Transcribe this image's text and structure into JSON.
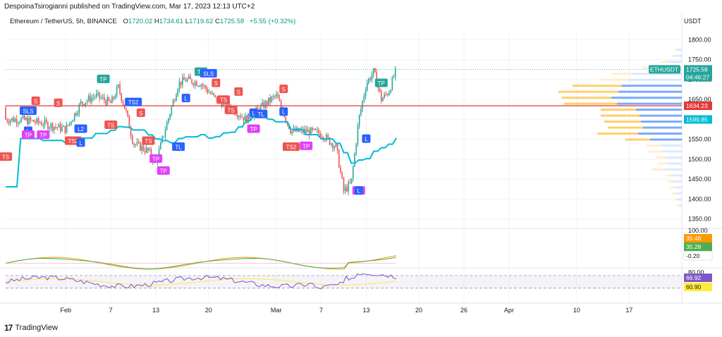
{
  "header": {
    "published": "DespoinaTsirogianni published on TradingView.com, Mar 17, 2023 12:13 UTC+2",
    "symbol": "Ethereum / TetherUS, 5h, BINANCE",
    "o_label": "O",
    "o": "1720.02",
    "h_label": "H",
    "h": "1734.61",
    "l_label": "L",
    "l": "1719.62",
    "c_label": "C",
    "c": "1725.58",
    "change": "+5.55 (+0.32%)",
    "currency": "USDT"
  },
  "footer": {
    "brand": "TradingView",
    "logo": "tradingview-logo"
  },
  "colors": {
    "up": "#26a69a",
    "down": "#ef5350",
    "ma": "#00bcd4",
    "hline": "#e53935",
    "grid": "#f0f3fa",
    "text": "#131722",
    "vp_up": "#4c8dff",
    "vp_down": "#ffc74d"
  },
  "chart_data": [
    {
      "type": "candlestick",
      "title": "Ethereum / TetherUS, 5h, BINANCE",
      "ylim": [
        1330,
        1820
      ],
      "y_ticks": [
        1800,
        1750,
        1700,
        1650,
        1600,
        1550,
        1500,
        1450,
        1400,
        1350
      ],
      "x_tick_labels": [
        "Feb",
        "7",
        "13",
        "20",
        "Mar",
        "7",
        "13",
        "20",
        "26",
        "Apr",
        "10",
        "17"
      ],
      "ohlc_trend": [
        {
          "date": "Jan 26",
          "close": 1600
        },
        {
          "date": "Jan 29",
          "close": 1590
        },
        {
          "date": "Feb 1",
          "close": 1575
        },
        {
          "date": "Feb 3",
          "close": 1640
        },
        {
          "date": "Feb 5",
          "close": 1660
        },
        {
          "date": "Feb 7",
          "close": 1640
        },
        {
          "date": "Feb 8",
          "close": 1680
        },
        {
          "date": "Feb 9",
          "close": 1620
        },
        {
          "date": "Feb 10",
          "close": 1540
        },
        {
          "date": "Feb 12",
          "close": 1520
        },
        {
          "date": "Feb 13",
          "close": 1490
        },
        {
          "date": "Feb 14",
          "close": 1560
        },
        {
          "date": "Feb 16",
          "close": 1690
        },
        {
          "date": "Feb 17",
          "close": 1700
        },
        {
          "date": "Feb 19",
          "close": 1690
        },
        {
          "date": "Feb 21",
          "close": 1650
        },
        {
          "date": "Feb 23",
          "close": 1630
        },
        {
          "date": "Feb 25",
          "close": 1600
        },
        {
          "date": "Feb 27",
          "close": 1630
        },
        {
          "date": "Mar 1",
          "close": 1660
        },
        {
          "date": "Mar 3",
          "close": 1570
        },
        {
          "date": "Mar 5",
          "close": 1570
        },
        {
          "date": "Mar 7",
          "close": 1565
        },
        {
          "date": "Mar 9",
          "close": 1530
        },
        {
          "date": "Mar 10",
          "close": 1420
        },
        {
          "date": "Mar 11",
          "close": 1440
        },
        {
          "date": "Mar 12",
          "close": 1600
        },
        {
          "date": "Mar 13",
          "close": 1690
        },
        {
          "date": "Mar 14",
          "close": 1720
        },
        {
          "date": "Mar 15",
          "close": 1650
        },
        {
          "date": "Mar 16",
          "close": 1670
        },
        {
          "date": "Mar 17",
          "close": 1725.58
        }
      ],
      "ma_series": {
        "start": 1475,
        "end": 1595
      },
      "horizontal_line": 1634.23,
      "price_labels": [
        {
          "text": "ETHUSDT",
          "value": 1725.58,
          "side": "left",
          "color": "#26a69a"
        },
        {
          "text": "1725.58",
          "value": 1725.58,
          "color": "#26a69a"
        },
        {
          "text": "04:46:27",
          "value": 1725.58,
          "offset": 1,
          "color": "#26a69a"
        },
        {
          "text": "1634.23",
          "value": 1634.23,
          "color": "#e53935"
        },
        {
          "text": "1599.85",
          "value": 1599.85,
          "color": "#00bcd4"
        }
      ],
      "signals": [
        {
          "label": "TP",
          "date": "Feb 6",
          "price": 1700,
          "color": "#26a69a"
        },
        {
          "label": "SLS",
          "date": "Jan 27",
          "price": 1620,
          "color": "#2962ff"
        },
        {
          "label": "S",
          "date": "Jan 28",
          "price": 1645,
          "color": "#ef5350"
        },
        {
          "label": "S",
          "date": "Jan 31",
          "price": 1640,
          "color": "#ef5350"
        },
        {
          "label": "TS",
          "date": "Jan 24",
          "price": 1505,
          "color": "#ef5350"
        },
        {
          "label": "L",
          "date": "Jan 27",
          "price": 1570,
          "color": "#2962ff"
        },
        {
          "label": "TP",
          "date": "Jan 27",
          "price": 1560,
          "color": "#e040fb"
        },
        {
          "label": "TP",
          "date": "Jan 29",
          "price": 1560,
          "color": "#e040fb"
        },
        {
          "label": "TS2",
          "date": "Feb 2",
          "price": 1545,
          "color": "#ef5350"
        },
        {
          "label": "L",
          "date": "Feb 3",
          "price": 1540,
          "color": "#2962ff"
        },
        {
          "label": "L2",
          "date": "Feb 3",
          "price": 1575,
          "color": "#2962ff"
        },
        {
          "label": "TS",
          "date": "Feb 7",
          "price": 1585,
          "color": "#ef5350"
        },
        {
          "label": "TS2",
          "date": "Feb 10",
          "price": 1642,
          "color": "#2962ff"
        },
        {
          "label": "S",
          "date": "Feb 11",
          "price": 1615,
          "color": "#ef5350"
        },
        {
          "label": "TS",
          "date": "Feb 12",
          "price": 1545,
          "color": "#ef5350"
        },
        {
          "label": "TP",
          "date": "Feb 13",
          "price": 1500,
          "color": "#e040fb"
        },
        {
          "label": "TP",
          "date": "Feb 14",
          "price": 1470,
          "color": "#e040fb"
        },
        {
          "label": "TL",
          "date": "Feb 16",
          "price": 1530,
          "color": "#2962ff"
        },
        {
          "label": "L",
          "date": "Feb 17",
          "price": 1652,
          "color": "#2962ff"
        },
        {
          "label": "TP",
          "date": "Feb 19",
          "price": 1718,
          "color": "#26a69a"
        },
        {
          "label": "SLS",
          "date": "Feb 20",
          "price": 1714,
          "color": "#2962ff"
        },
        {
          "label": "S",
          "date": "Feb 21",
          "price": 1690,
          "color": "#ef5350"
        },
        {
          "label": "TS",
          "date": "Feb 22",
          "price": 1648,
          "color": "#ef5350"
        },
        {
          "label": "TS",
          "date": "Feb 23",
          "price": 1622,
          "color": "#ef5350"
        },
        {
          "label": "S",
          "date": "Feb 24",
          "price": 1668,
          "color": "#ef5350"
        },
        {
          "label": "L",
          "date": "Feb 26",
          "price": 1615,
          "color": "#2962ff"
        },
        {
          "label": "TP",
          "date": "Feb 26",
          "price": 1575,
          "color": "#e040fb"
        },
        {
          "label": "TL",
          "date": "Feb 27",
          "price": 1612,
          "color": "#2962ff"
        },
        {
          "label": "S",
          "date": "Mar 2",
          "price": 1675,
          "color": "#ef5350"
        },
        {
          "label": "L",
          "date": "Mar 2",
          "price": 1618,
          "color": "#2962ff"
        },
        {
          "label": "TS2",
          "date": "Mar 3",
          "price": 1530,
          "color": "#ef5350"
        },
        {
          "label": "TP",
          "date": "Mar 5",
          "price": 1532,
          "color": "#e040fb"
        },
        {
          "label": "L",
          "date": "Mar 13",
          "price": 1550,
          "color": "#2962ff"
        },
        {
          "label": "TP",
          "date": "Mar 12",
          "price": 1420,
          "color": "#e040fb"
        },
        {
          "label": "L",
          "date": "Mar 12",
          "price": 1420,
          "color": "#2962ff"
        },
        {
          "label": "TP",
          "date": "Mar 15",
          "price": 1690,
          "color": "#26a69a"
        }
      ]
    },
    {
      "type": "line",
      "title": "",
      "ylim": [
        -10,
        100
      ],
      "y_ticks": [
        100
      ],
      "value_labels": [
        {
          "text": "35.48",
          "value": 35.48,
          "color": "#ff9800"
        },
        {
          "text": "35.28",
          "value": 35.28,
          "color": "#4caf50"
        },
        {
          "text": "-0.20",
          "value": -0.2,
          "color": "#ffffff"
        }
      ]
    },
    {
      "type": "line",
      "title": "",
      "ylim": [
        0,
        90
      ],
      "y_ticks": [
        80
      ],
      "value_labels": [
        {
          "text": "66.92",
          "value": 66.92,
          "color": "#7e57c2"
        },
        {
          "text": "60.90",
          "value": 60.9,
          "color": "#ffeb3b"
        }
      ]
    }
  ]
}
